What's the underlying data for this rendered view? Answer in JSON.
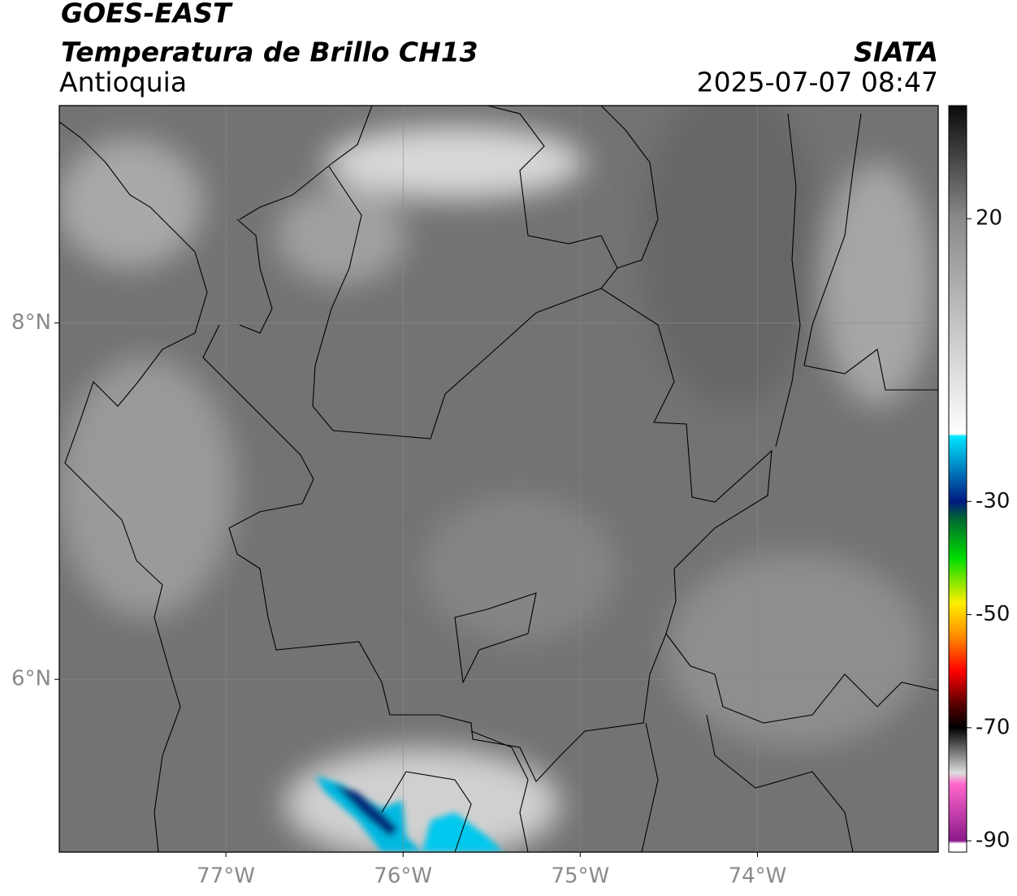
{
  "header": {
    "title": "GOES-EAST",
    "subtitle": "Temperatura de Brillo CH13",
    "region": "Antioquia",
    "source": "SIATA",
    "datetime": "2025-07-07 08:47"
  },
  "map": {
    "xlim": [
      -77.94,
      -72.98
    ],
    "ylim": [
      5.03,
      9.22
    ],
    "xticks": [
      {
        "value": -77,
        "label": "77°W"
      },
      {
        "value": -76,
        "label": "76°W"
      },
      {
        "value": -75,
        "label": "75°W"
      },
      {
        "value": -74,
        "label": "74°W"
      }
    ],
    "yticks": [
      {
        "value": 8,
        "label": "8°N"
      },
      {
        "value": 6,
        "label": "6°N"
      }
    ]
  },
  "colorbar": {
    "clim": [
      -92,
      40
    ],
    "ticks": [
      20,
      -30,
      -50,
      -70,
      -90
    ],
    "stops": [
      {
        "value": 40,
        "color": "#0a0a0a"
      },
      {
        "value": 20,
        "color": "#8a8a8a"
      },
      {
        "value": -18,
        "color": "#ffffff"
      },
      {
        "value": -18.5,
        "color": "#00e5ff"
      },
      {
        "value": -30,
        "color": "#001a80"
      },
      {
        "value": -33,
        "color": "#006633"
      },
      {
        "value": -40,
        "color": "#00dd00"
      },
      {
        "value": -48,
        "color": "#ffee00"
      },
      {
        "value": -54,
        "color": "#ff8800"
      },
      {
        "value": -60,
        "color": "#ff0000"
      },
      {
        "value": -66,
        "color": "#550000"
      },
      {
        "value": -70,
        "color": "#000000"
      },
      {
        "value": -78,
        "color": "#dddddd"
      },
      {
        "value": -80,
        "color": "#ff66cc"
      },
      {
        "value": -90,
        "color": "#8a1a8a"
      },
      {
        "value": -90.5,
        "color": "#ffffff"
      }
    ]
  }
}
